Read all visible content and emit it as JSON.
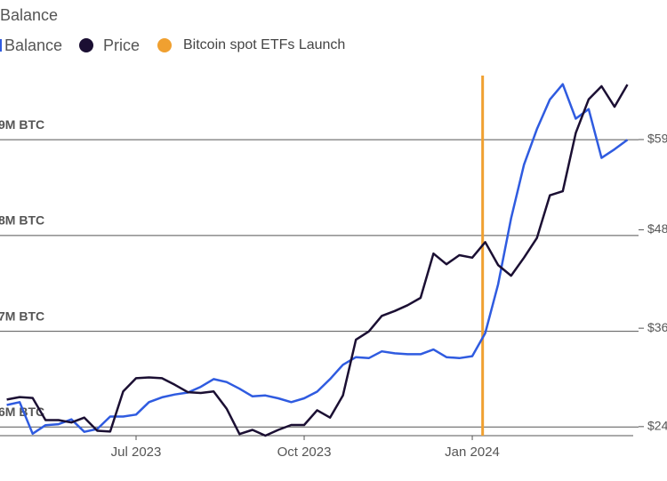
{
  "chart_data": {
    "type": "line",
    "title": "Balance",
    "categories": [
      null,
      null,
      null,
      null,
      null,
      null,
      null,
      null,
      null,
      null,
      "Jul 2023",
      null,
      null,
      null,
      null,
      null,
      null,
      null,
      null,
      null,
      null,
      null,
      null,
      "Oct 2023",
      null,
      null,
      null,
      null,
      null,
      null,
      null,
      null,
      null,
      null,
      null,
      null,
      "Jan 2024",
      null,
      null,
      null,
      null,
      null,
      null,
      null,
      null,
      null,
      null,
      null,
      null
    ],
    "series": [
      {
        "name": "Balance",
        "color": "#2f5be0",
        "axis": "y",
        "values": [
          6.23,
          6.26,
          5.93,
          6.02,
          6.03,
          6.08,
          5.95,
          5.98,
          6.11,
          6.11,
          6.13,
          6.26,
          6.31,
          6.34,
          6.36,
          6.42,
          6.5,
          6.47,
          6.4,
          6.32,
          6.33,
          6.3,
          6.26,
          6.3,
          6.37,
          6.5,
          6.65,
          6.73,
          6.72,
          6.79,
          6.77,
          6.76,
          6.76,
          6.81,
          6.73,
          6.72,
          6.74,
          6.98,
          7.49,
          8.18,
          8.74,
          9.11,
          9.42,
          9.58,
          9.22,
          9.32,
          8.81,
          8.9,
          9.0
        ]
      },
      {
        "name": "Price",
        "color": "#1b0f33",
        "axis": "y2",
        "values": [
          27.3,
          27.6,
          27.5,
          24.8,
          24.8,
          24.5,
          25.1,
          23.5,
          23.4,
          28.3,
          29.9,
          30.0,
          29.9,
          29.1,
          28.2,
          28.1,
          28.3,
          26.2,
          23.1,
          23.6,
          22.9,
          23.6,
          24.2,
          24.2,
          26.0,
          25.1,
          27.8,
          34.6,
          35.6,
          37.5,
          38.1,
          38.8,
          39.7,
          45.1,
          43.8,
          44.9,
          44.6,
          46.5,
          43.7,
          42.4,
          44.6,
          47.0,
          52.2,
          52.7,
          59.8,
          63.9,
          65.5,
          63.0,
          65.7
        ]
      }
    ],
    "ylim": [
      5.91,
      9.67
    ],
    "yticks": [
      {
        "value": 6,
        "label": "6M BTC"
      },
      {
        "value": 7,
        "label": "7M BTC"
      },
      {
        "value": 8,
        "label": "8M BTC"
      },
      {
        "value": 9,
        "label": "9M BTC"
      }
    ],
    "y2lim": [
      22.9,
      66.8
    ],
    "y2ticks": [
      {
        "value": 24,
        "label": "$24"
      },
      {
        "value": 36,
        "label": "$36"
      },
      {
        "value": 48,
        "label": "$48"
      },
      {
        "value": 59,
        "label": "$59"
      }
    ],
    "grid": true,
    "annotation": {
      "label": "Bitcoin spot ETFs Launch",
      "x": 36.8,
      "color": "#f0a030"
    }
  }
}
